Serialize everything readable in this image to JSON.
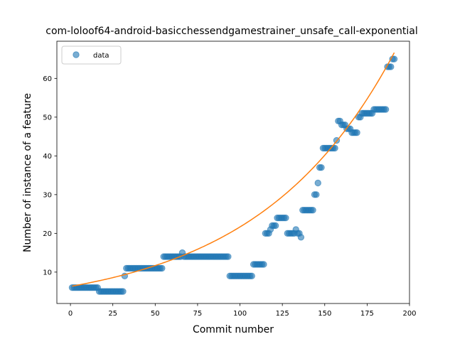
{
  "chart_data": {
    "type": "scatter",
    "title": "com-loloof64-android-basicchessendgamestrainer_unsafe_call-exponential",
    "xlabel": "Commit number",
    "ylabel": "Number of instance of a feature",
    "xlim": [
      -8,
      200
    ],
    "ylim": [
      1.9,
      69.6
    ],
    "xticks": [
      0,
      25,
      50,
      75,
      100,
      125,
      150,
      175,
      200
    ],
    "yticks": [
      10,
      20,
      30,
      40,
      50,
      60
    ],
    "grid": false,
    "legend": {
      "position": "top-left",
      "entries": [
        "data"
      ]
    },
    "colors": {
      "data": "#1f77b4",
      "fit": "#ff7f0e"
    },
    "series": [
      {
        "name": "data",
        "kind": "points",
        "segments": [
          {
            "x_start": 1,
            "x_end": 16,
            "y": 6
          },
          {
            "x_start": 17,
            "x_end": 31,
            "y": 5
          },
          {
            "x_start": 32,
            "x_end": 32,
            "y": 9
          },
          {
            "x_start": 33,
            "x_end": 54,
            "y": 11
          },
          {
            "x_start": 55,
            "x_end": 65,
            "y": 14
          },
          {
            "x_start": 66,
            "x_end": 66,
            "y": 15
          },
          {
            "x_start": 67,
            "x_end": 93,
            "y": 14
          },
          {
            "x_start": 94,
            "x_end": 107,
            "y": 9
          },
          {
            "x_start": 108,
            "x_end": 114,
            "y": 12
          },
          {
            "x_start": 115,
            "x_end": 117,
            "y": 20
          },
          {
            "x_start": 118,
            "x_end": 118,
            "y": 21
          },
          {
            "x_start": 119,
            "x_end": 121,
            "y": 22
          },
          {
            "x_start": 122,
            "x_end": 127,
            "y": 24
          },
          {
            "x_start": 128,
            "x_end": 132,
            "y": 20
          },
          {
            "x_start": 133,
            "x_end": 133,
            "y": 21
          },
          {
            "x_start": 134,
            "x_end": 135,
            "y": 20
          },
          {
            "x_start": 136,
            "x_end": 136,
            "y": 19
          },
          {
            "x_start": 137,
            "x_end": 143,
            "y": 26
          },
          {
            "x_start": 144,
            "x_end": 145,
            "y": 30
          },
          {
            "x_start": 146,
            "x_end": 146,
            "y": 33
          },
          {
            "x_start": 147,
            "x_end": 148,
            "y": 37
          },
          {
            "x_start": 149,
            "x_end": 156,
            "y": 42
          },
          {
            "x_start": 157,
            "x_end": 157,
            "y": 44
          },
          {
            "x_start": 158,
            "x_end": 159,
            "y": 49
          },
          {
            "x_start": 160,
            "x_end": 162,
            "y": 48
          },
          {
            "x_start": 163,
            "x_end": 165,
            "y": 47
          },
          {
            "x_start": 166,
            "x_end": 169,
            "y": 46
          },
          {
            "x_start": 170,
            "x_end": 171,
            "y": 50
          },
          {
            "x_start": 172,
            "x_end": 178,
            "y": 51
          },
          {
            "x_start": 179,
            "x_end": 186,
            "y": 52
          },
          {
            "x_start": 187,
            "x_end": 189,
            "y": 63
          },
          {
            "x_start": 190,
            "x_end": 191,
            "y": 65
          }
        ]
      },
      {
        "name": "",
        "kind": "line",
        "function": "exponential",
        "a": 6.3,
        "b": 0.01235,
        "x_start": 1,
        "x_end": 191
      }
    ]
  }
}
